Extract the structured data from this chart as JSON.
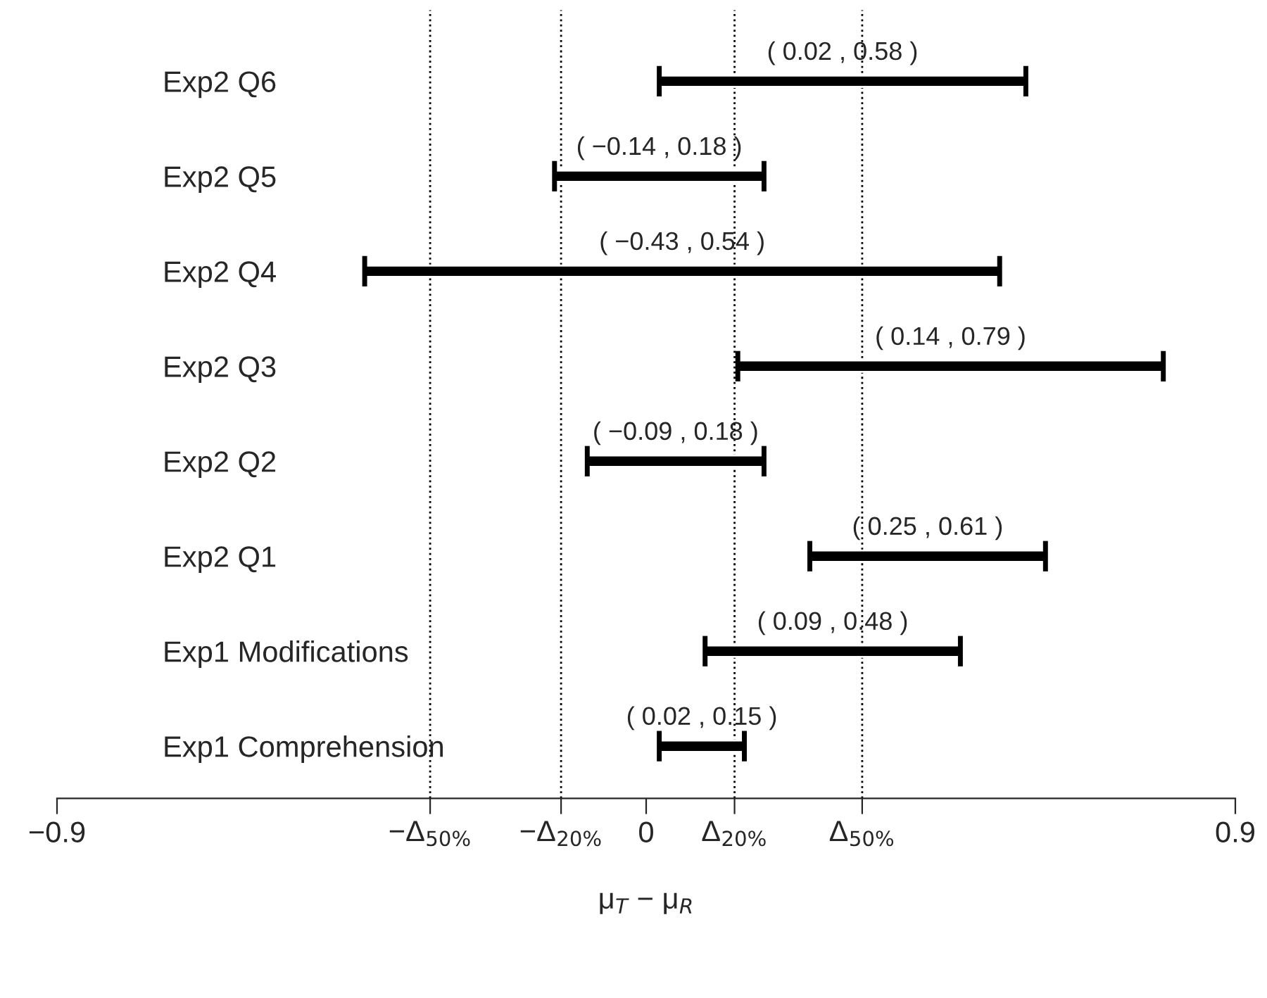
{
  "chart_data": {
    "type": "bar",
    "orientation": "horizontal",
    "xlabel": "μ$_{T}$ − μ$_{R}$",
    "categories": [
      "Exp2 Q6",
      "Exp2 Q5",
      "Exp2 Q4",
      "Exp2 Q3",
      "Exp2 Q2",
      "Exp2 Q1",
      "Exp1 Modifications",
      "Exp1 Comprehension"
    ],
    "base": [
      0.02,
      -0.14,
      -0.43,
      0.14,
      -0.09,
      0.25,
      0.09,
      0.02
    ],
    "values": [
      0.56,
      0.32,
      0.97,
      0.65,
      0.27,
      0.36,
      0.39,
      0.13
    ],
    "value_labels": [
      "( 0.02 , 0.58 )",
      "( −0.14 , 0.18 )",
      "( −0.43 , 0.54 )",
      "( 0.14 , 0.79 )",
      "( −0.09 , 0.18 )",
      "( 0.25 , 0.61 )",
      "( 0.09 , 0.48 )",
      "( 0.02 , 0.15 )"
    ],
    "color": "#000000",
    "xlim": [
      -0.9,
      0.9
    ],
    "xticks": [
      -0.9,
      {
        "value": -0.33,
        "label": null
      },
      {
        "value": -0.13,
        "label": null
      },
      0,
      {
        "value": 0.135,
        "label": null
      },
      {
        "value": 0.33,
        "label": null
      },
      0.9
    ],
    "ref_lines": [
      {
        "axis": "x",
        "value": -0.33,
        "line_style": "dotted",
        "label": "−Δ$_{50%}$"
      },
      {
        "axis": "x",
        "value": -0.13,
        "line_style": "dotted",
        "label": "−Δ$_{20%}$"
      },
      {
        "axis": "x",
        "value": 0.135,
        "line_style": "dotted",
        "label": "Δ$_{20%}$"
      },
      {
        "axis": "x",
        "value": 0.33,
        "line_style": "dotted",
        "label": "Δ$_{50%}$"
      }
    ],
    "grid": false,
    "legend": false
  }
}
